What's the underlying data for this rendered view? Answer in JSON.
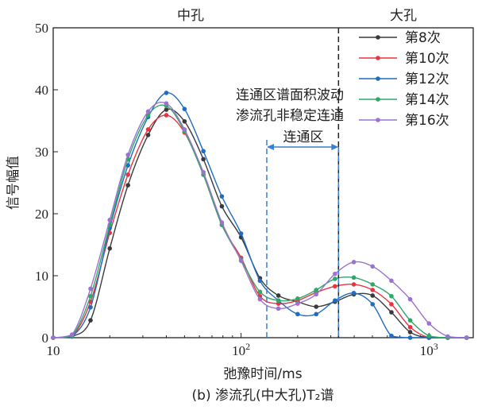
{
  "chart_data": {
    "type": "line",
    "title": "",
    "caption": "(b) 渗流孔(中大孔)T₂谱",
    "xlabel": "弛豫时间/ms",
    "ylabel": "信号幅值",
    "xscale": "log",
    "xlim": [
      10,
      1720
    ],
    "ylim": [
      0,
      50
    ],
    "xticks": [
      10,
      100,
      1000
    ],
    "xtick_labels": [
      {
        "base": "10",
        "exp": ""
      },
      {
        "base": "10",
        "exp": "2"
      },
      {
        "base": "10",
        "exp": "3"
      }
    ],
    "yticks": [
      0,
      10,
      20,
      30,
      40,
      50
    ],
    "ytick_labels": [
      "0",
      "10",
      "20",
      "30",
      "40",
      "50"
    ],
    "grid": false,
    "legend_position": "top-right",
    "x": [
      10,
      12.6,
      15.8,
      20,
      25,
      32,
      40,
      50,
      63,
      79,
      100,
      126,
      158,
      200,
      251,
      316,
      398,
      501,
      631,
      794,
      1000,
      1259,
      1585
    ],
    "series": [
      {
        "name": "第8次",
        "color": "#3a3a3a",
        "values": [
          0,
          0.2,
          2.8,
          14.4,
          24.6,
          32.7,
          36.8,
          34.9,
          28.8,
          21.2,
          16.2,
          9.6,
          6.8,
          5.8,
          5.0,
          5.8,
          7.0,
          6.8,
          4.1,
          0.9,
          0,
          0,
          0
        ]
      },
      {
        "name": "第10次",
        "color": "#e8343e",
        "values": [
          0,
          0.2,
          5.8,
          16.9,
          26.3,
          33.6,
          35.9,
          33.1,
          26.3,
          18.2,
          12.9,
          6.7,
          5.5,
          6.0,
          7.3,
          8.3,
          8.6,
          7.7,
          5.4,
          1.7,
          0,
          0,
          0
        ]
      },
      {
        "name": "第12次",
        "color": "#1f6cc2",
        "values": [
          0,
          0.2,
          4.9,
          17.7,
          27.8,
          35.6,
          39.5,
          36.9,
          30.1,
          22.8,
          16.8,
          9.2,
          6.0,
          3.8,
          3.8,
          6.0,
          7.2,
          5.4,
          0.3,
          0,
          0,
          0,
          0
        ]
      },
      {
        "name": "第14次",
        "color": "#2ea866",
        "values": [
          0,
          0.3,
          6.7,
          18.2,
          28.8,
          35.9,
          37.4,
          33.3,
          26.3,
          18.2,
          12.6,
          7.4,
          6.0,
          6.3,
          7.7,
          9.5,
          9.7,
          8.6,
          6.7,
          2.8,
          0.3,
          0,
          0
        ]
      },
      {
        "name": "第16次",
        "color": "#9b72cf",
        "values": [
          0,
          0.5,
          7.9,
          19.0,
          29.5,
          36.5,
          37.8,
          33.6,
          26.7,
          18.6,
          12.4,
          6.2,
          4.7,
          5.5,
          7.0,
          10.3,
          12.2,
          11.5,
          9.2,
          6.2,
          2.3,
          0.2,
          0
        ]
      }
    ],
    "annotations": {
      "region_top_left": "中孔",
      "region_top_right": "大孔",
      "note_line1": "连通区谱面积波动",
      "note_line2": "渗流孔非稳定连通",
      "note_color": "#3b7fd0",
      "bracket_label": "连通区",
      "bracket_left_x": 137,
      "boundary_x": 330
    }
  }
}
